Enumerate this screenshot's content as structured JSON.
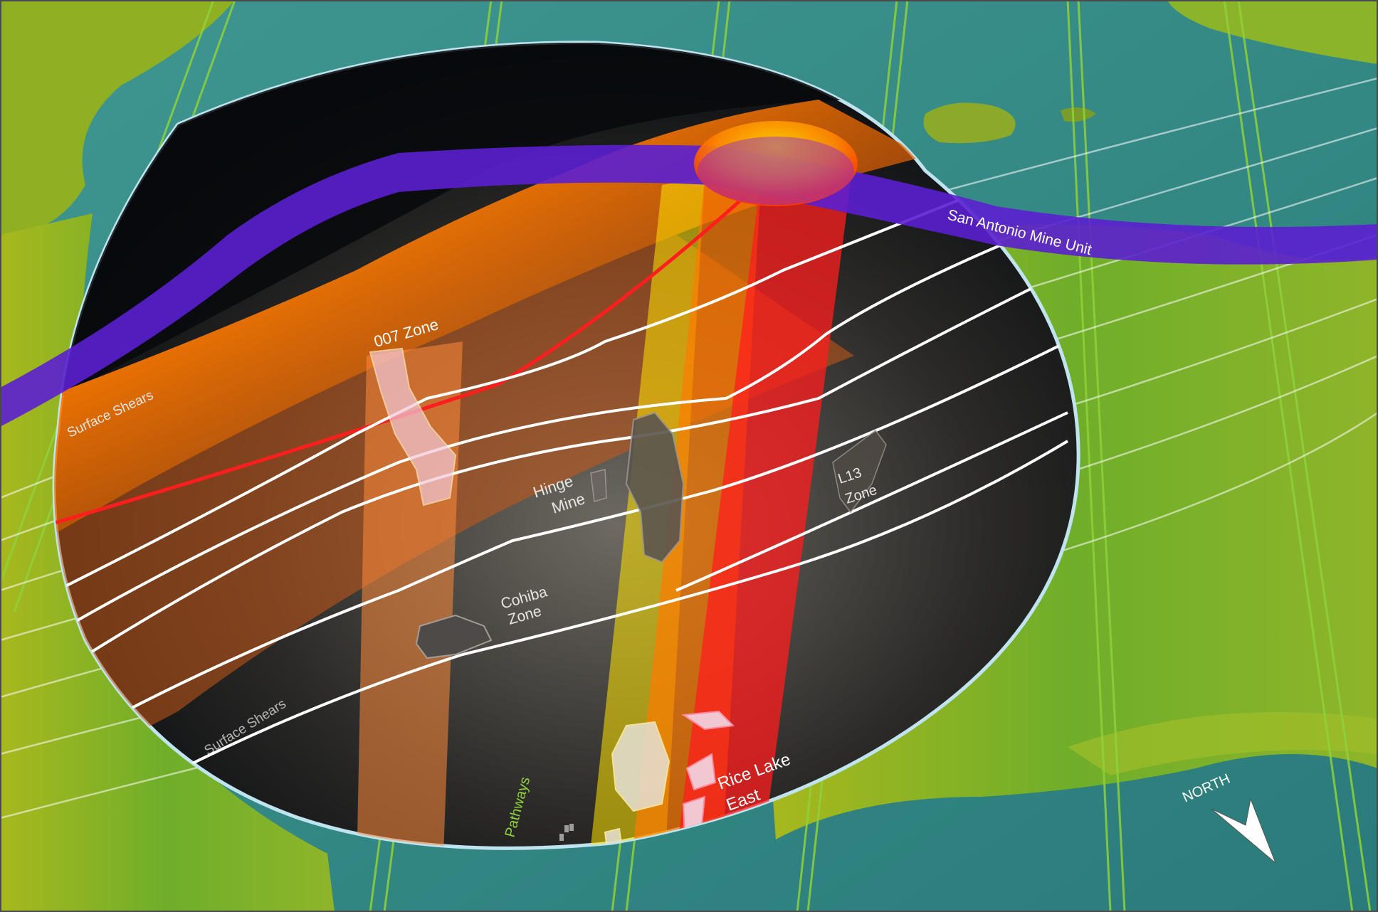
{
  "map": {
    "labels": {
      "san_antonio": "San Antonio Mine Unit",
      "zone_007": "007 Zone",
      "surface_shears_top": "Surface Shears",
      "surface_shears_bottom": "Surface Shears",
      "hinge_line1": "Hinge",
      "hinge_line2": "Mine",
      "l13_line1": "L13",
      "l13_line2": "Zone",
      "cohiba_line1": "Cohiba",
      "cohiba_line2": "Zone",
      "pathways": "Pathways",
      "rice_line1": "Rice Lake",
      "rice_line2": "East",
      "north": "NORTH"
    },
    "colors": {
      "water": "#2f8a85",
      "terrain_green": "#6fae2a",
      "terrain_yellow": "#c9c325",
      "purple_unit": "#5b1fd0",
      "orange_band": "#ff6a00",
      "red_band": "#ff1e1e",
      "yellow_band": "#ffe400",
      "pathway_green": "#8fd23a",
      "shear_white": "#ffffff"
    },
    "icons": [
      "north-arrow-icon"
    ]
  }
}
